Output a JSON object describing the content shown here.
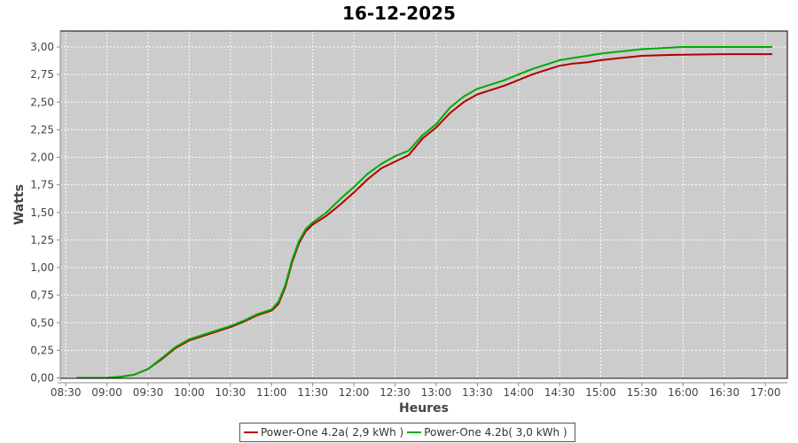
{
  "chart_data": {
    "type": "line",
    "title": "16-12-2025",
    "xlabel": "Heures",
    "ylabel": "Watts",
    "xlim": [
      "08:26",
      "17:16"
    ],
    "ylim": [
      0,
      3.1
    ],
    "x_ticks": [
      "08:30",
      "09:00",
      "09:30",
      "10:00",
      "10:30",
      "11:00",
      "11:30",
      "12:00",
      "12:30",
      "13:00",
      "13:30",
      "14:00",
      "14:30",
      "15:00",
      "15:30",
      "16:00",
      "16:30",
      "17:00"
    ],
    "y_ticks": [
      "0,00",
      "0,25",
      "0,50",
      "0,75",
      "1,00",
      "1,25",
      "1,50",
      "1,75",
      "2,00",
      "2,25",
      "2,50",
      "2,75",
      "3,00"
    ],
    "grid": true,
    "legend_position": "bottom",
    "plot_background": "#cccccc",
    "series": [
      {
        "name": "Power-One 4.2a( 2,9 kWh )",
        "color": "#b00000",
        "x": [
          "08:38",
          "09:00",
          "09:10",
          "09:20",
          "09:30",
          "09:40",
          "09:50",
          "10:00",
          "10:10",
          "10:20",
          "10:30",
          "10:40",
          "10:50",
          "11:00",
          "11:05",
          "11:10",
          "11:15",
          "11:20",
          "11:25",
          "11:30",
          "11:40",
          "11:50",
          "12:00",
          "12:10",
          "12:20",
          "12:30",
          "12:40",
          "12:50",
          "13:00",
          "13:10",
          "13:20",
          "13:30",
          "13:40",
          "13:50",
          "14:00",
          "14:10",
          "14:20",
          "14:30",
          "14:40",
          "14:50",
          "15:00",
          "15:15",
          "15:30",
          "15:45",
          "16:00",
          "16:30",
          "17:05"
        ],
        "values": [
          0,
          0,
          0.01,
          0.03,
          0.08,
          0.17,
          0.27,
          0.34,
          0.38,
          0.42,
          0.46,
          0.51,
          0.57,
          0.61,
          0.67,
          0.82,
          1.05,
          1.22,
          1.33,
          1.39,
          1.47,
          1.57,
          1.68,
          1.8,
          1.9,
          1.96,
          2.02,
          2.17,
          2.27,
          2.4,
          2.5,
          2.57,
          2.61,
          2.65,
          2.7,
          2.75,
          2.79,
          2.83,
          2.85,
          2.86,
          2.88,
          2.9,
          2.92,
          2.925,
          2.93,
          2.935,
          2.935
        ]
      },
      {
        "name": "Power-One 4.2b( 3,0 kWh )",
        "color": "#00aa00",
        "x": [
          "08:38",
          "09:00",
          "09:10",
          "09:20",
          "09:30",
          "09:40",
          "09:50",
          "10:00",
          "10:10",
          "10:20",
          "10:30",
          "10:40",
          "10:50",
          "11:00",
          "11:05",
          "11:10",
          "11:15",
          "11:20",
          "11:25",
          "11:30",
          "11:40",
          "11:50",
          "12:00",
          "12:10",
          "12:20",
          "12:30",
          "12:40",
          "12:50",
          "13:00",
          "13:10",
          "13:20",
          "13:30",
          "13:40",
          "13:50",
          "14:00",
          "14:10",
          "14:20",
          "14:30",
          "14:40",
          "14:50",
          "15:00",
          "15:15",
          "15:30",
          "15:45",
          "16:00",
          "16:30",
          "17:05"
        ],
        "values": [
          0,
          0,
          0.01,
          0.03,
          0.08,
          0.18,
          0.28,
          0.35,
          0.39,
          0.43,
          0.47,
          0.52,
          0.58,
          0.62,
          0.69,
          0.84,
          1.07,
          1.24,
          1.35,
          1.41,
          1.5,
          1.62,
          1.73,
          1.85,
          1.94,
          2.01,
          2.06,
          2.2,
          2.3,
          2.45,
          2.55,
          2.62,
          2.66,
          2.7,
          2.75,
          2.8,
          2.84,
          2.88,
          2.9,
          2.92,
          2.94,
          2.96,
          2.98,
          2.99,
          3.0,
          3.0,
          3.0
        ]
      }
    ]
  }
}
